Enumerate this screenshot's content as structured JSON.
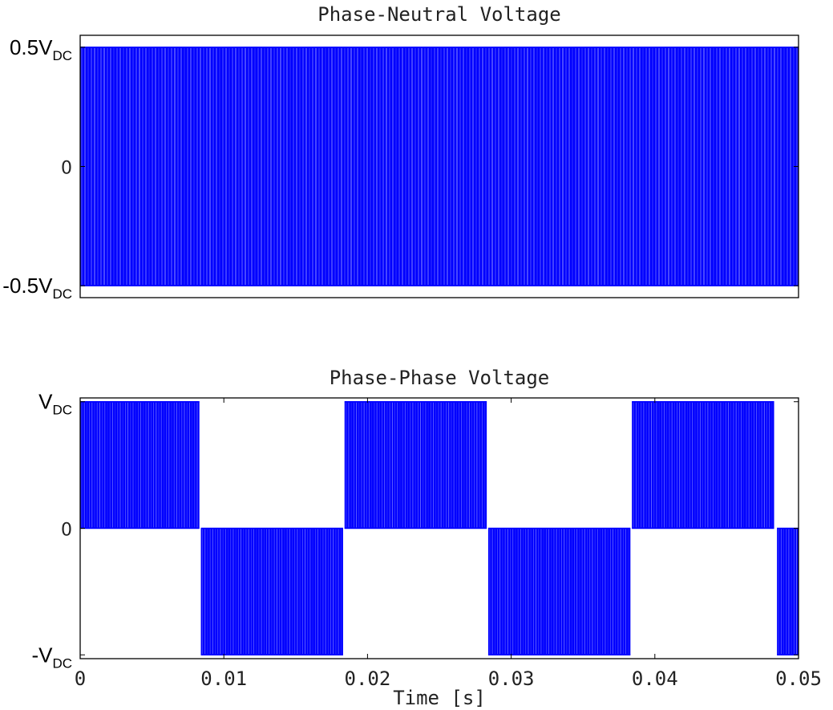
{
  "chart_data": [
    {
      "type": "line",
      "title": "Phase-Neutral Voltage",
      "xlabel": "",
      "ylabel": "",
      "xlim": [
        0,
        0.05
      ],
      "ylim": [
        -0.55,
        0.55
      ],
      "ytick_labels": [
        {
          "value": 0.5,
          "main": "0.5V",
          "sub": "DC"
        },
        {
          "value": 0,
          "main": "0",
          "sub": ""
        },
        {
          "value": -0.5,
          "main": "-0.5V",
          "sub": "DC"
        }
      ],
      "series": [
        {
          "color": "#0000ff",
          "description_signal": "PWM",
          "levels": [
            -0.5,
            0.5
          ],
          "segments": [
            {
              "x_start": 0.0,
              "x_end": 0.05,
              "low": -0.5,
              "high": 0.5
            }
          ]
        }
      ],
      "grid": false
    },
    {
      "type": "line",
      "title": "Phase-Phase Voltage",
      "xlabel": "Time [s]",
      "ylabel": "",
      "xlim": [
        0,
        0.05
      ],
      "ylim": [
        -1.03,
        1.03
      ],
      "x_ticks": [
        "0",
        "0.01",
        "0.02",
        "0.03",
        "0.04",
        "0.05"
      ],
      "x_tick_values": [
        0,
        0.01,
        0.02,
        0.03,
        0.04,
        0.05
      ],
      "ytick_labels": [
        {
          "value": 1,
          "main": "V",
          "sub": "DC"
        },
        {
          "value": 0,
          "main": "0",
          "sub": ""
        },
        {
          "value": -1,
          "main": "-V",
          "sub": "DC"
        }
      ],
      "series": [
        {
          "color": "#0000ff",
          "segments": [
            {
              "x_start": 0.0,
              "x_end": 0.0083,
              "low": 0,
              "high": 1
            },
            {
              "x_start": 0.0084,
              "x_end": 0.0183,
              "low": -1,
              "high": 0
            },
            {
              "x_start": 0.0184,
              "x_end": 0.0283,
              "low": 0,
              "high": 1
            },
            {
              "x_start": 0.0284,
              "x_end": 0.0383,
              "low": -1,
              "high": 0
            },
            {
              "x_start": 0.0384,
              "x_end": 0.0483,
              "low": 0,
              "high": 1
            },
            {
              "x_start": 0.0485,
              "x_end": 0.05,
              "low": -1,
              "high": 0
            }
          ]
        }
      ],
      "grid": false
    }
  ]
}
